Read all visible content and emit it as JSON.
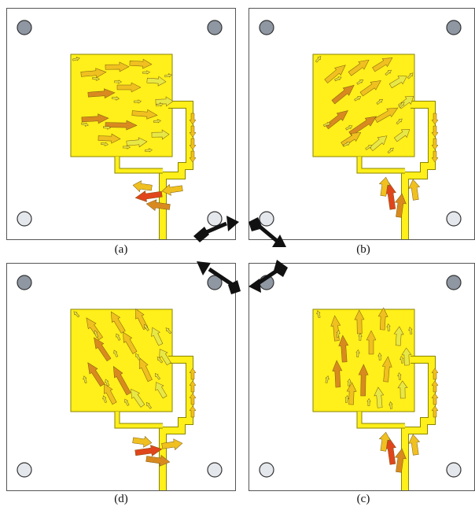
{
  "panels": [
    {
      "id": "a",
      "label": "(a)",
      "flow": "right",
      "feed_dir": "left"
    },
    {
      "id": "b",
      "label": "(b)",
      "flow": "upright",
      "feed_dir": "up"
    },
    {
      "id": "c",
      "label": "(c)",
      "flow": "up",
      "feed_dir": "up"
    },
    {
      "id": "d",
      "label": "(d)",
      "flow": "upleft",
      "feed_dir": "right"
    }
  ],
  "colors": {
    "patch": "#ffef1a",
    "patch_edge": "#8a8400",
    "arrow_light": "#e8e845",
    "arrow_mid": "#f0c020",
    "arrow_strong": "#d98a1f",
    "arrow_hot": "#e0451c",
    "screw": "#8f97a3",
    "screw_light": "#e4e7ec",
    "cycle_arrow": "#111111"
  },
  "cycle_icon": "rotation-cycle-arrows-icon"
}
